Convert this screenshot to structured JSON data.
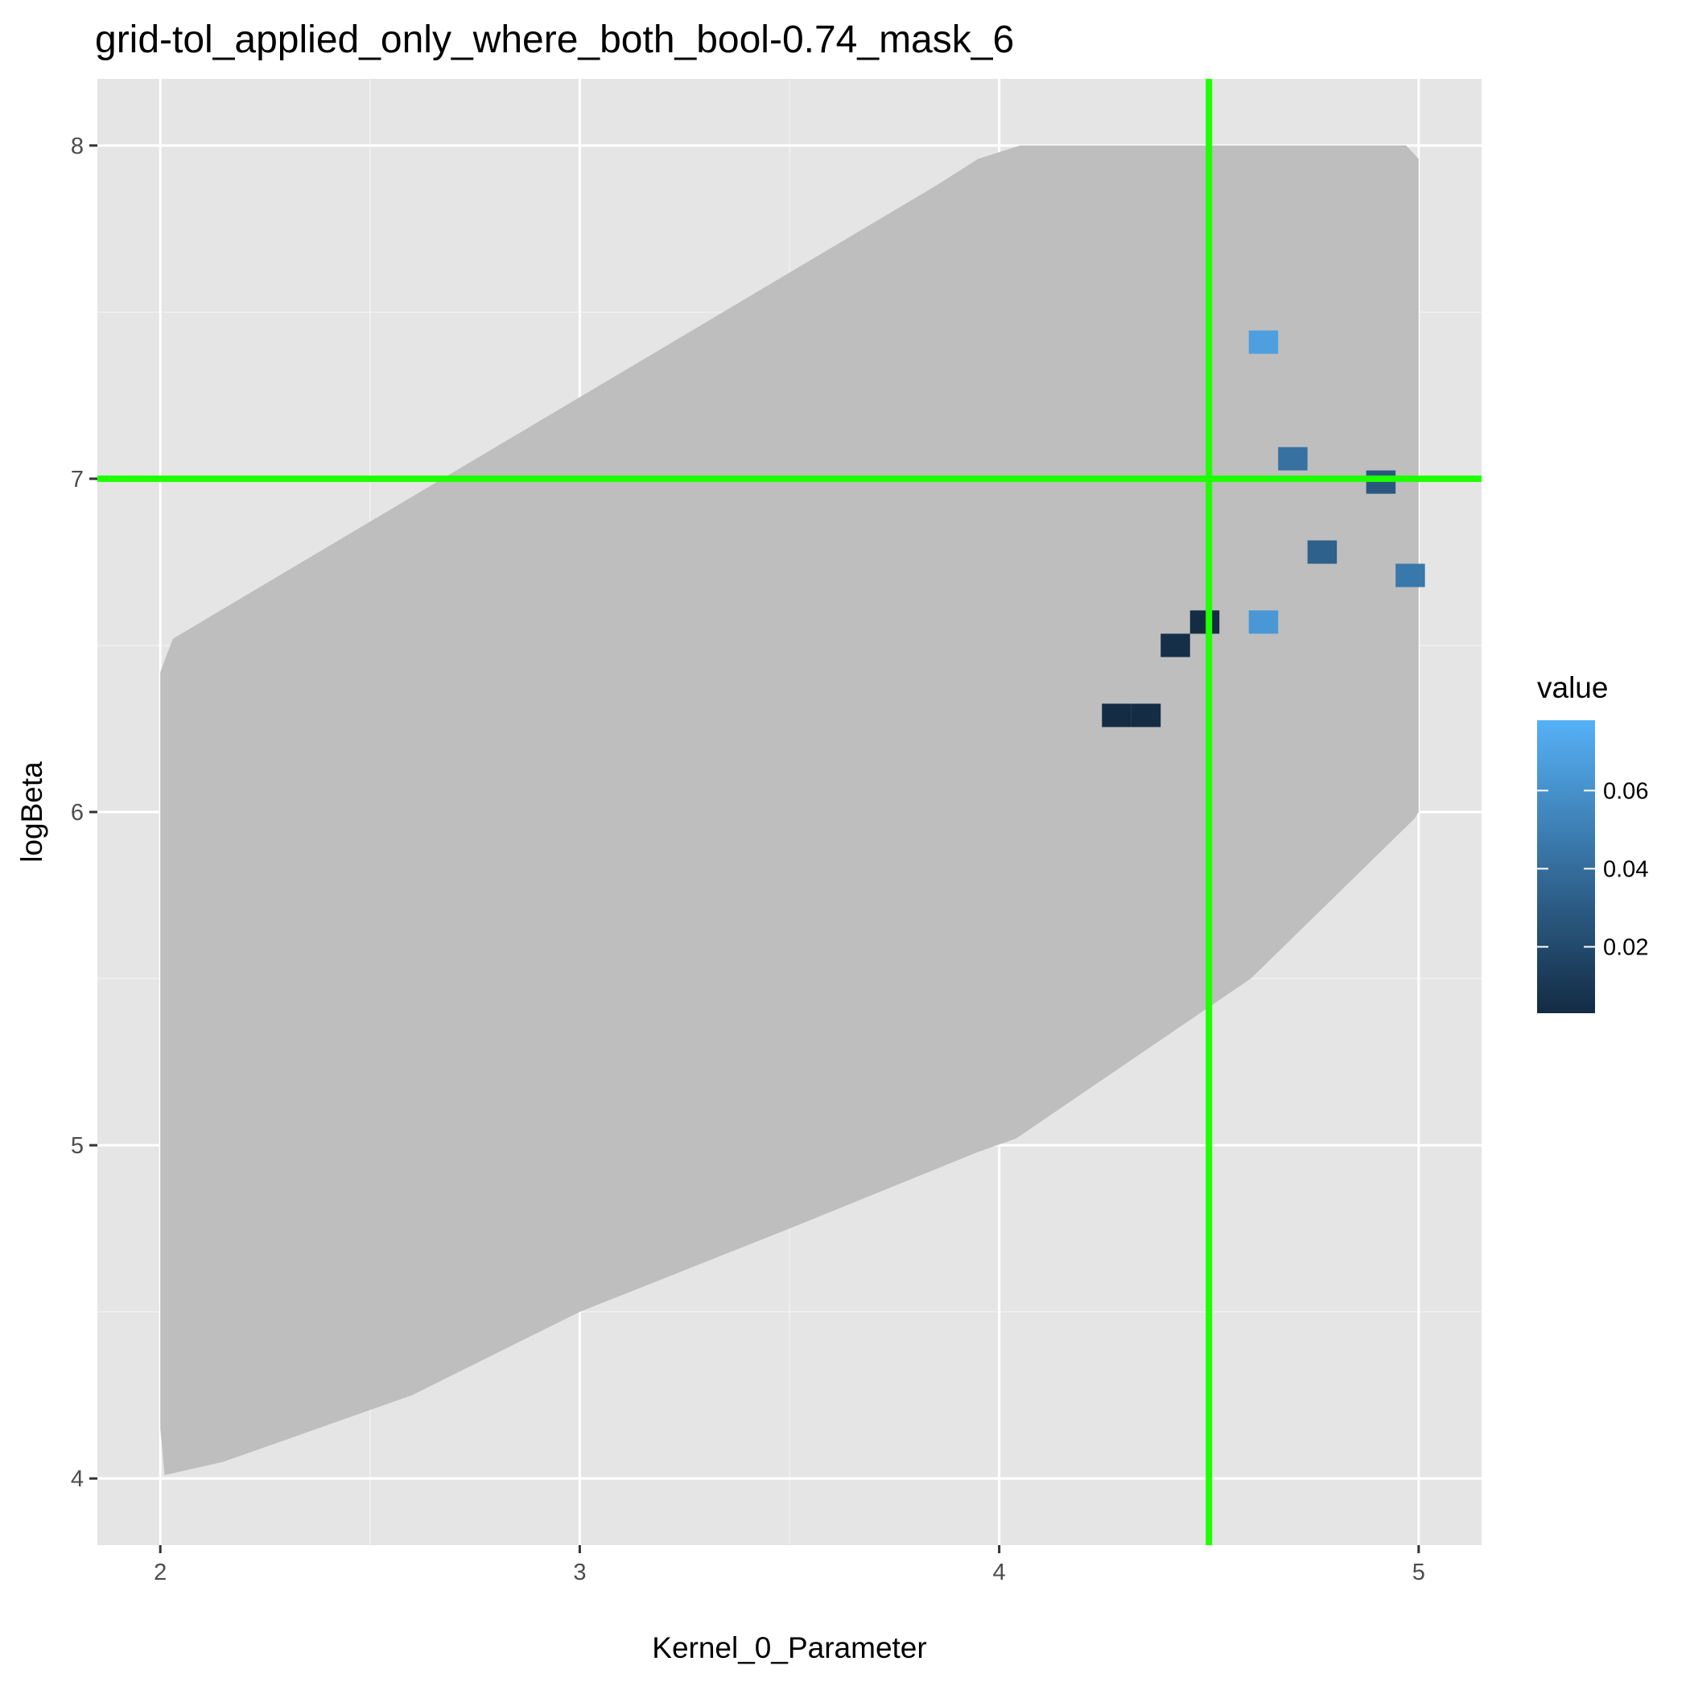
{
  "chart_data": {
    "type": "heatmap",
    "title": "grid-tol_applied_only_where_both_bool-0.74_mask_6",
    "xlabel": "Kernel_0_Parameter",
    "ylabel": "logBeta",
    "xlim": [
      1.85,
      5.15
    ],
    "ylim": [
      3.8,
      8.2
    ],
    "x_ticks": [
      2,
      3,
      4,
      5
    ],
    "x_tick_labels": [
      "2",
      "3",
      "4",
      "5"
    ],
    "y_ticks": [
      4,
      5,
      6,
      7,
      8
    ],
    "y_tick_labels": [
      "4",
      "5",
      "6",
      "7",
      "8"
    ],
    "grid": true,
    "region": {
      "fill": "#bebebe",
      "outline": [
        [
          2.01,
          4.01
        ],
        [
          2.15,
          4.05
        ],
        [
          2.6,
          4.25
        ],
        [
          3.0,
          4.5
        ],
        [
          3.5,
          4.75
        ],
        [
          3.95,
          4.98
        ],
        [
          4.04,
          5.02
        ],
        [
          4.6,
          5.5
        ],
        [
          4.99,
          5.98
        ],
        [
          5.0,
          6.0
        ],
        [
          5.0,
          7.96
        ],
        [
          4.97,
          8.0
        ],
        [
          4.05,
          8.0
        ],
        [
          3.95,
          7.96
        ],
        [
          3.85,
          7.88
        ],
        [
          2.03,
          6.52
        ],
        [
          2.0,
          6.42
        ],
        [
          2.0,
          4.15
        ]
      ]
    },
    "tile_width": 0.07,
    "tile_height": 0.07,
    "tiles": [
      {
        "x": 4.63,
        "y": 7.41,
        "value": 0.068
      },
      {
        "x": 4.7,
        "y": 7.06,
        "value": 0.042
      },
      {
        "x": 4.91,
        "y": 6.99,
        "value": 0.028
      },
      {
        "x": 4.77,
        "y": 6.78,
        "value": 0.033
      },
      {
        "x": 4.98,
        "y": 6.71,
        "value": 0.046
      },
      {
        "x": 4.63,
        "y": 6.57,
        "value": 0.064
      },
      {
        "x": 4.49,
        "y": 6.57,
        "value": 0.004
      },
      {
        "x": 4.42,
        "y": 6.5,
        "value": 0.005
      },
      {
        "x": 4.28,
        "y": 6.29,
        "value": 0.004
      },
      {
        "x": 4.35,
        "y": 6.29,
        "value": 0.004
      }
    ],
    "reference_lines": {
      "vertical_x": 4.5,
      "horizontal_y": 7.0,
      "color": "#1eff00"
    },
    "colorscale": {
      "low": "#132b43",
      "high": "#56b1f7",
      "min": 0.003,
      "max": 0.078
    },
    "legend": {
      "title": "value",
      "placement": "right",
      "ticks": [
        0.02,
        0.04,
        0.06
      ],
      "tick_labels": [
        "0.02",
        "0.04",
        "0.06"
      ]
    }
  }
}
